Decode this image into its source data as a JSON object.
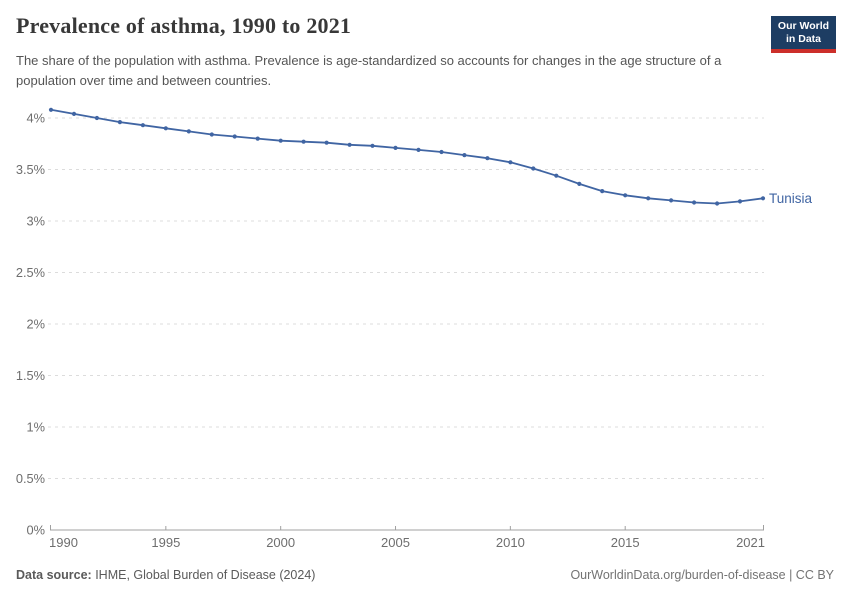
{
  "header": {
    "title": "Prevalence of asthma, 1990 to 2021",
    "subtitle": "The share of the population with asthma. Prevalence is age-standardized so accounts for changes in the age structure of a population over time and between countries.",
    "logo": {
      "line1": "Our World",
      "line2": "in Data"
    }
  },
  "chart_data": {
    "type": "line",
    "title": "Prevalence of asthma, 1990 to 2021",
    "xlabel": "",
    "ylabel": "",
    "grid": true,
    "legend_position": "end-of-line-label",
    "x": [
      1990,
      1991,
      1992,
      1993,
      1994,
      1995,
      1996,
      1997,
      1998,
      1999,
      2000,
      2001,
      2002,
      2003,
      2004,
      2005,
      2006,
      2007,
      2008,
      2009,
      2010,
      2011,
      2012,
      2013,
      2014,
      2015,
      2016,
      2017,
      2018,
      2019,
      2020,
      2021
    ],
    "series": [
      {
        "name": "Tunisia",
        "color": "#4065a3",
        "values": [
          4.08,
          4.04,
          4.0,
          3.96,
          3.93,
          3.9,
          3.87,
          3.84,
          3.82,
          3.8,
          3.78,
          3.77,
          3.76,
          3.74,
          3.73,
          3.71,
          3.69,
          3.67,
          3.64,
          3.61,
          3.57,
          3.51,
          3.44,
          3.36,
          3.29,
          3.25,
          3.22,
          3.2,
          3.18,
          3.17,
          3.19,
          3.22
        ]
      }
    ],
    "xlim": [
      1990,
      2021
    ],
    "ylim": [
      0,
      4.18
    ],
    "x_ticks": [
      1990,
      1995,
      2000,
      2005,
      2010,
      2015,
      2021
    ],
    "y_ticks": [
      {
        "v": 0,
        "label": "0%"
      },
      {
        "v": 0.5,
        "label": "0.5%"
      },
      {
        "v": 1,
        "label": "1%"
      },
      {
        "v": 1.5,
        "label": "1.5%"
      },
      {
        "v": 2,
        "label": "2%"
      },
      {
        "v": 2.5,
        "label": "2.5%"
      },
      {
        "v": 3,
        "label": "3%"
      },
      {
        "v": 3.5,
        "label": "3.5%"
      },
      {
        "v": 4,
        "label": "4%"
      }
    ]
  },
  "footer": {
    "source_label": "Data source:",
    "source_text": " IHME, Global Burden of Disease (2024)",
    "credit": "OurWorldinData.org/burden-of-disease | CC BY"
  },
  "colors": {
    "line": "#4065a3",
    "entity_label": "#4065a3",
    "gridline": "#dcdcdc",
    "axis": "#a0a0a0",
    "tick_label": "#6e6e6e",
    "logo_bg": "#1d3d63",
    "logo_bar": "#cc2f2a"
  }
}
